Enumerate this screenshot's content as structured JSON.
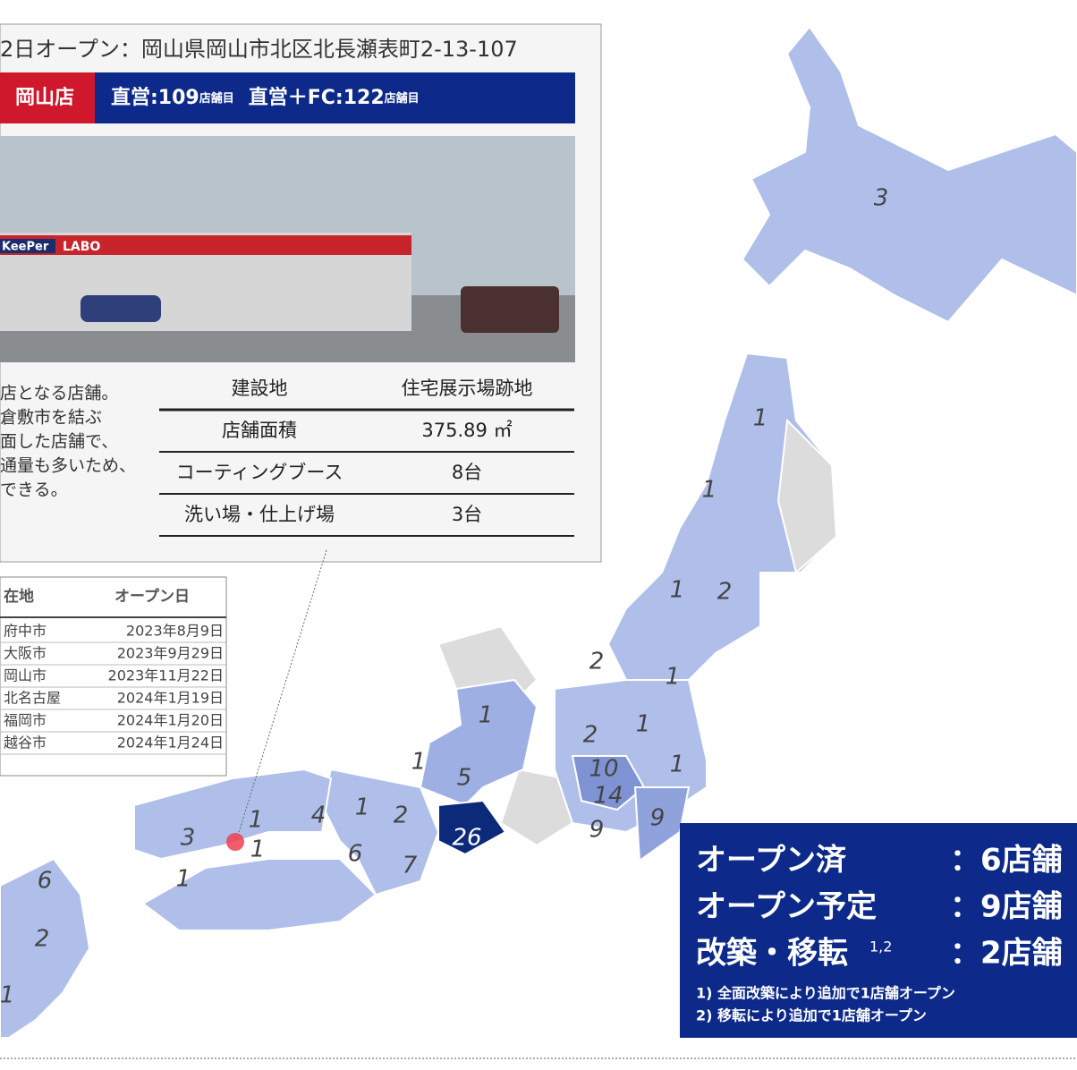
{
  "callout": {
    "address": "2日オープン：岡山県岡山市北区北長瀬表町2-13-107",
    "store_name": "岡山店",
    "direct_label": "直営:109",
    "direct_unit": "店舗目",
    "total_label": "直営＋FC:122",
    "total_unit": "店舗目",
    "photo_signs": [
      "KeePer",
      "LABO"
    ],
    "description": [
      "店となる店舗。",
      "倉敷市を結ぶ",
      "面した店舗で、",
      "通量も多いため、",
      "できる。"
    ],
    "specs": [
      [
        "建設地",
        "住宅展示場跡地"
      ],
      [
        "店舗面積",
        "375.89 ㎡"
      ],
      [
        "コーティングブース",
        "8台"
      ],
      [
        "洗い場・仕上げ場",
        "3台"
      ]
    ]
  },
  "store_table": {
    "header": [
      "在地",
      "オープン日"
    ],
    "rows": [
      [
        "府中市",
        "2023年8月9日"
      ],
      [
        "大阪市",
        "2023年9月29日"
      ],
      [
        "岡山市",
        "2023年11月22日"
      ],
      [
        "北名古屋",
        "2024年1月19日"
      ],
      [
        "福岡市",
        "2024年1月20日"
      ],
      [
        "越谷市",
        "2024年1月24日"
      ]
    ]
  },
  "map_labels": [
    3,
    1,
    1,
    1,
    2,
    2,
    1,
    2,
    1,
    1,
    10,
    14,
    9,
    9,
    1,
    1,
    5,
    26,
    2,
    1,
    4,
    6,
    7,
    1,
    3,
    1,
    1,
    6,
    2,
    1
  ],
  "summary": {
    "rows": [
      [
        "オープン済",
        "：6店舗"
      ],
      [
        "オープン予定",
        "：9店舗"
      ],
      [
        "改築・移転",
        "：2店舗"
      ]
    ],
    "superscript": "1,2",
    "notes": [
      "1) 全面改築により追加で1店舗オープン",
      "2) 移転により追加で1店舗オープン"
    ]
  }
}
